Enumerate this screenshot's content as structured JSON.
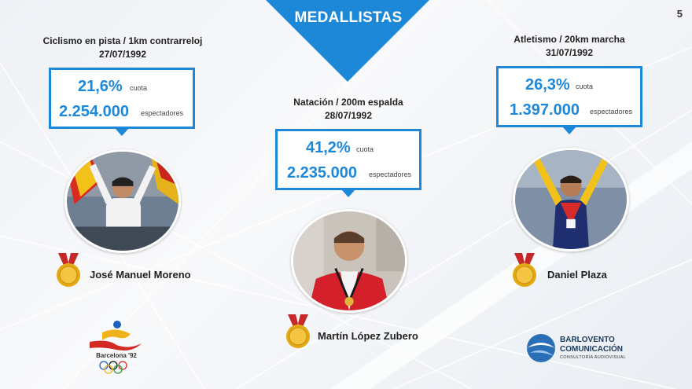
{
  "slide": {
    "title": "MEDALLISTAS",
    "page_number": "5",
    "accent_color": "#1e88d8"
  },
  "medalists": [
    {
      "event": "Ciclismo en pista / 1km contrarreloj",
      "date": "27/07/1992",
      "share": "21,6%",
      "share_label": "cuota",
      "viewers": "2.254.000",
      "viewers_label": "espectadores",
      "athlete": "José Manuel Moreno",
      "medal": "gold"
    },
    {
      "event": "Natación / 200m espalda",
      "date": "28/07/1992",
      "share": "41,2%",
      "share_label": "cuota",
      "viewers": "2.235.000",
      "viewers_label": "espectadores",
      "athlete": "Martín López Zubero",
      "medal": "gold"
    },
    {
      "event": "Atletismo / 20km marcha",
      "date": "31/07/1992",
      "share": "26,3%",
      "share_label": "cuota",
      "viewers": "1.397.000",
      "viewers_label": "espectadores",
      "athlete": "Daniel Plaza",
      "medal": "gold"
    }
  ],
  "logos": {
    "barcelona": "Barcelona '92",
    "barlovento_line1": "BARLOVENTO",
    "barlovento_line2": "COMUNICACIÓN",
    "barlovento_tagline": "CONSULTORÍA AUDIOVISUAL"
  }
}
